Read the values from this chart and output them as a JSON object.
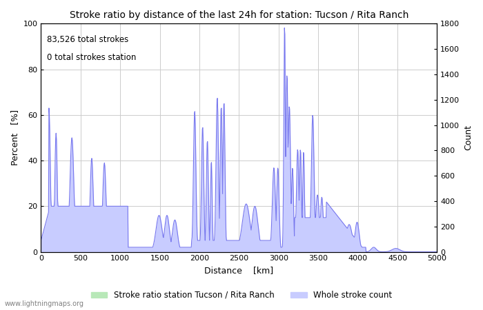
{
  "title": "Stroke ratio by distance of the last 24h for station: Tucson / Rita Ranch",
  "xlabel": "Distance    [km]",
  "ylabel_left": "Percent   [%]",
  "ylabel_right": "Count",
  "annotation_line1": "83,526 total strokes",
  "annotation_line2": "0 total strokes station",
  "xlim": [
    0,
    5000
  ],
  "ylim_left": [
    0,
    100
  ],
  "ylim_right": [
    0,
    1800
  ],
  "xticks": [
    0,
    500,
    1000,
    1500,
    2000,
    2500,
    3000,
    3500,
    4000,
    4500,
    5000
  ],
  "yticks_left": [
    0,
    20,
    40,
    60,
    80,
    100
  ],
  "yticks_right": [
    0,
    200,
    400,
    600,
    800,
    1000,
    1200,
    1400,
    1600,
    1800
  ],
  "fill_color_ratio": "#b8e8b8",
  "fill_color_count": "#c8ccff",
  "line_color": "#7777ee",
  "grid_color": "#cccccc",
  "bg_color": "#ffffff",
  "legend_label_ratio": "Stroke ratio station Tucson / Rita Ranch",
  "legend_label_count": "Whole stroke count",
  "watermark": "www.lightningmaps.org"
}
